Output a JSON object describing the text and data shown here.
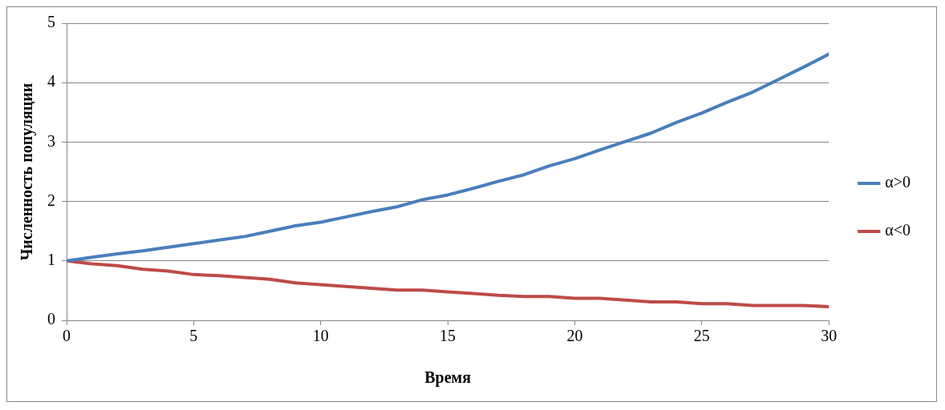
{
  "chart_data": {
    "type": "line",
    "xlabel": "Время",
    "ylabel": "Численность популяции",
    "x": [
      0,
      1,
      2,
      3,
      4,
      5,
      6,
      7,
      8,
      9,
      10,
      11,
      12,
      13,
      14,
      15,
      16,
      17,
      18,
      19,
      20,
      21,
      22,
      23,
      24,
      25,
      26,
      27,
      28,
      29,
      30
    ],
    "series": [
      {
        "name": "α>0",
        "color": "#4a7ebb",
        "values": [
          1,
          1.06,
          1.12,
          1.17,
          1.23,
          1.29,
          1.35,
          1.41,
          1.5,
          1.59,
          1.65,
          1.74,
          1.83,
          1.91,
          2.03,
          2.11,
          2.22,
          2.34,
          2.45,
          2.6,
          2.72,
          2.87,
          3.01,
          3.15,
          3.33,
          3.49,
          3.67,
          3.84,
          4.05,
          4.26,
          4.48
        ]
      },
      {
        "name": "α<0",
        "color": "#be4b48",
        "values": [
          1,
          0.95,
          0.92,
          0.86,
          0.83,
          0.77,
          0.75,
          0.72,
          0.69,
          0.63,
          0.6,
          0.57,
          0.54,
          0.51,
          0.51,
          0.48,
          0.45,
          0.42,
          0.4,
          0.4,
          0.37,
          0.37,
          0.34,
          0.31,
          0.31,
          0.28,
          0.28,
          0.25,
          0.25,
          0.25,
          0.23
        ]
      }
    ],
    "xlim": [
      0,
      30
    ],
    "xticks": [
      0,
      5,
      10,
      15,
      20,
      25,
      30
    ],
    "ylim": [
      0,
      5
    ],
    "yticks": [
      0,
      1,
      2,
      3,
      4,
      5
    ],
    "grid": "y",
    "legend": "right",
    "marker": "none",
    "line_style": "solid"
  }
}
